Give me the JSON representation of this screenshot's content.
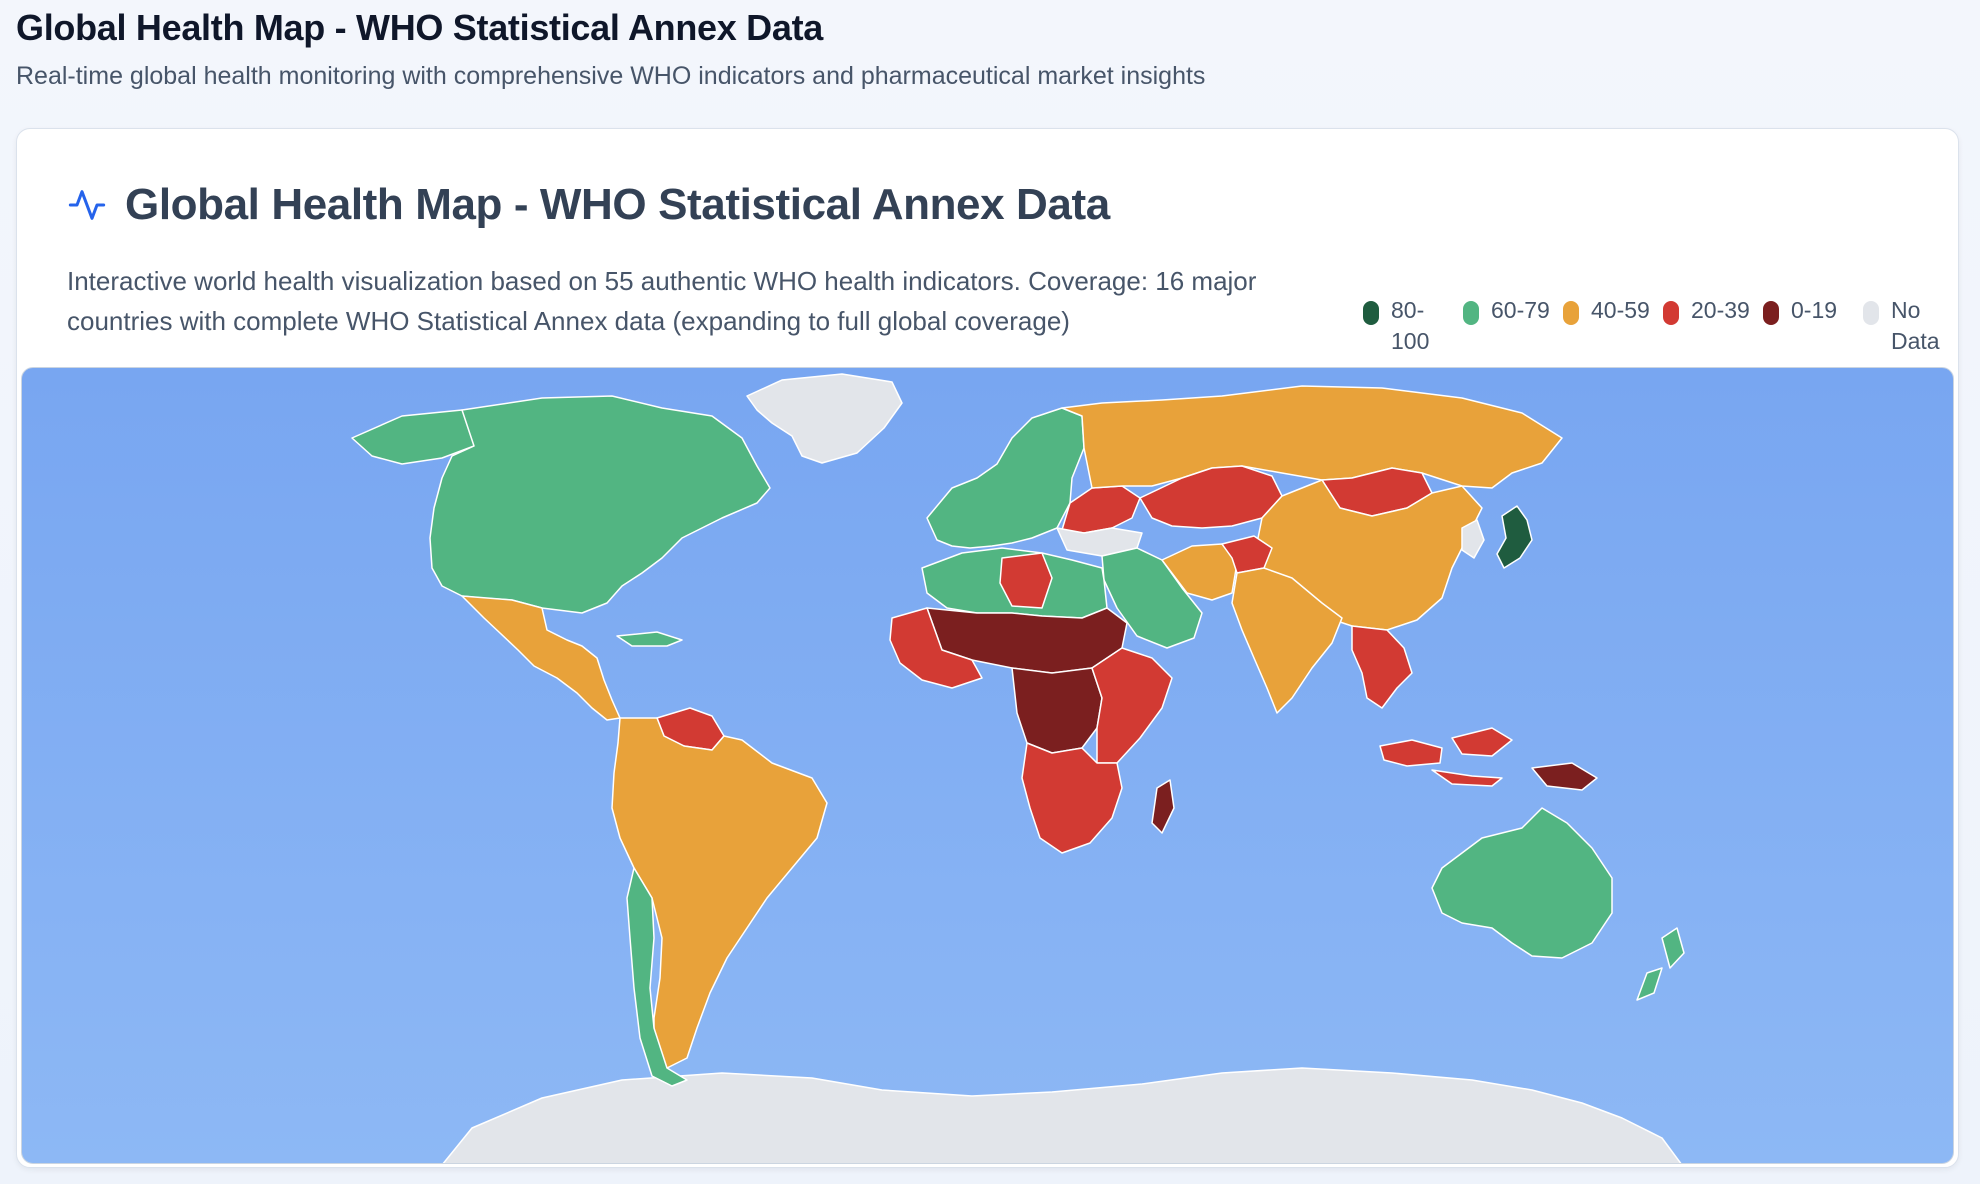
{
  "page": {
    "title": "Global Health Map - WHO Statistical Annex Data",
    "subtitle": "Real-time global health monitoring with comprehensive WHO indicators and pharmaceutical market insights"
  },
  "card": {
    "title": "Global Health Map - WHO Statistical Annex Data",
    "description": "Interactive world health visualization based on 55 authentic WHO health indicators. Coverage: 16 major countries with complete WHO Statistical Annex data (expanding to full global coverage)",
    "icon": "activity-pulse-icon"
  },
  "legend": [
    {
      "label": "80-100",
      "color": "#1f5c3f"
    },
    {
      "label": "60-79",
      "color": "#52b582"
    },
    {
      "label": "40-59",
      "color": "#e8a23a"
    },
    {
      "label": "20-39",
      "color": "#d23a33"
    },
    {
      "label": "0-19",
      "color": "#7b1f1f"
    },
    {
      "label": "No Data",
      "color": "#e2e5ea"
    }
  ],
  "colors": {
    "ocean": "#80adf3",
    "band_80_100": "#1f5c3f",
    "band_60_79": "#52b582",
    "band_40_59": "#e8a23a",
    "band_20_39": "#d23a33",
    "band_0_19": "#7b1f1f",
    "no_data": "#e2e5ea"
  },
  "regions": [
    {
      "name": "north-america",
      "band": "band_60_79"
    },
    {
      "name": "alaska",
      "band": "band_60_79"
    },
    {
      "name": "greenland",
      "band": "no_data"
    },
    {
      "name": "mexico-central-america",
      "band": "band_40_59"
    },
    {
      "name": "south-america",
      "band": "band_40_59"
    },
    {
      "name": "chile",
      "band": "band_60_79"
    },
    {
      "name": "venezuela",
      "band": "band_20_39"
    },
    {
      "name": "western-europe",
      "band": "band_60_79"
    },
    {
      "name": "eastern-europe",
      "band": "band_20_39"
    },
    {
      "name": "russia",
      "band": "band_40_59"
    },
    {
      "name": "kazakhstan",
      "band": "band_20_39"
    },
    {
      "name": "mongolia",
      "band": "band_20_39"
    },
    {
      "name": "china",
      "band": "band_40_59"
    },
    {
      "name": "japan",
      "band": "band_80_100"
    },
    {
      "name": "korea",
      "band": "no_data"
    },
    {
      "name": "turkey",
      "band": "no_data"
    },
    {
      "name": "middle-east",
      "band": "band_60_79"
    },
    {
      "name": "iran",
      "band": "band_40_59"
    },
    {
      "name": "afghanistan",
      "band": "band_20_39"
    },
    {
      "name": "south-asia",
      "band": "band_40_59"
    },
    {
      "name": "southeast-asia",
      "band": "band_20_39"
    },
    {
      "name": "indonesia",
      "band": "band_20_39"
    },
    {
      "name": "papua-new-guinea",
      "band": "band_0_19"
    },
    {
      "name": "australia",
      "band": "band_60_79"
    },
    {
      "name": "new-zealand",
      "band": "band_60_79"
    },
    {
      "name": "north-africa",
      "band": "band_60_79"
    },
    {
      "name": "libya",
      "band": "band_20_39"
    },
    {
      "name": "sahel",
      "band": "band_0_19"
    },
    {
      "name": "west-africa",
      "band": "band_20_39"
    },
    {
      "name": "central-africa",
      "band": "band_0_19"
    },
    {
      "name": "east-africa",
      "band": "band_20_39"
    },
    {
      "name": "southern-africa",
      "band": "band_20_39"
    },
    {
      "name": "madagascar",
      "band": "band_0_19"
    },
    {
      "name": "antarctica",
      "band": "no_data"
    }
  ]
}
